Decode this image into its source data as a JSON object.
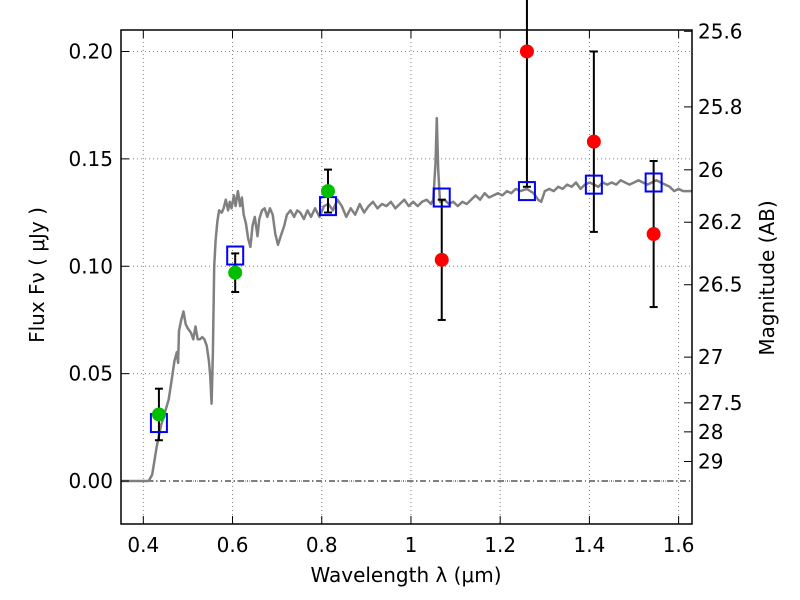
{
  "chart_data": {
    "type": "scatter",
    "xlabel": "Wavelength  λ (μm)",
    "ylabel": "Flux  Fν ( μJy )",
    "y2label": "Magnitude (AB)",
    "xlim": [
      0.35,
      1.63
    ],
    "ylim": [
      -0.02,
      0.21
    ],
    "grid": true,
    "x_ticks": [
      0.4,
      0.6,
      0.8,
      1.0,
      1.2,
      1.4,
      1.6
    ],
    "x_tick_labels": [
      "0.4",
      "0.6",
      "0.8",
      "1",
      "1.2",
      "1.4",
      "1.6"
    ],
    "y_ticks": [
      0.0,
      0.05,
      0.1,
      0.15,
      0.2
    ],
    "y_tick_labels": [
      "0.00",
      "0.05",
      "0.10",
      "0.15",
      "0.20"
    ],
    "mag_ticks": [
      {
        "label": "25.6",
        "flux": 0.2094
      },
      {
        "label": "25.8",
        "flux": 0.1742
      },
      {
        "label": "26",
        "flux": 0.1449
      },
      {
        "label": "26.2",
        "flux": 0.1205
      },
      {
        "label": "26.5",
        "flux": 0.0914
      },
      {
        "label": "27",
        "flux": 0.0577
      },
      {
        "label": "27.5",
        "flux": 0.0364
      },
      {
        "label": "28",
        "flux": 0.0229
      },
      {
        "label": "29",
        "flux": 0.0091
      }
    ],
    "colors": {
      "model": "#808080",
      "green": "#00bf00",
      "red": "#ff0000",
      "model_points": "#0000ff",
      "errorbar": "#000000",
      "grid": "#7f7f7f"
    },
    "series": [
      {
        "marker": "circle",
        "color": "#00bf00",
        "points": [
          {
            "x": 0.435,
            "y": 0.031,
            "yerr": 0.012
          },
          {
            "x": 0.606,
            "y": 0.097,
            "yerr": 0.009
          },
          {
            "x": 0.814,
            "y": 0.135,
            "yerr": 0.01
          }
        ]
      },
      {
        "marker": "circle",
        "color": "#ff0000",
        "points": [
          {
            "x": 1.069,
            "y": 0.103,
            "yerr": 0.028
          },
          {
            "x": 1.26,
            "y": 0.2,
            "yerr": 0.063
          },
          {
            "x": 1.41,
            "y": 0.158,
            "yerr": 0.042
          },
          {
            "x": 1.544,
            "y": 0.115,
            "yerr": 0.034
          }
        ]
      },
      {
        "marker": "open-square",
        "color": "#0000ff",
        "points": [
          {
            "x": 0.435,
            "y": 0.027
          },
          {
            "x": 0.606,
            "y": 0.105
          },
          {
            "x": 0.814,
            "y": 0.128
          },
          {
            "x": 1.069,
            "y": 0.132
          },
          {
            "x": 1.26,
            "y": 0.135
          },
          {
            "x": 1.41,
            "y": 0.138
          },
          {
            "x": 1.544,
            "y": 0.139
          }
        ]
      },
      {
        "marker": "line",
        "color": "#808080",
        "points": [
          [
            0.35,
            0.0
          ],
          [
            0.412,
            0.0
          ],
          [
            0.42,
            0.003
          ],
          [
            0.43,
            0.016
          ],
          [
            0.44,
            0.026
          ],
          [
            0.45,
            0.033
          ],
          [
            0.457,
            0.038
          ],
          [
            0.462,
            0.045
          ],
          [
            0.467,
            0.052
          ],
          [
            0.47,
            0.056
          ],
          [
            0.475,
            0.06
          ],
          [
            0.478,
            0.055
          ],
          [
            0.48,
            0.07
          ],
          [
            0.485,
            0.075
          ],
          [
            0.49,
            0.079
          ],
          [
            0.495,
            0.073
          ],
          [
            0.5,
            0.071
          ],
          [
            0.507,
            0.069
          ],
          [
            0.512,
            0.066
          ],
          [
            0.517,
            0.072
          ],
          [
            0.522,
            0.066
          ],
          [
            0.527,
            0.066
          ],
          [
            0.532,
            0.067
          ],
          [
            0.537,
            0.066
          ],
          [
            0.542,
            0.063
          ],
          [
            0.547,
            0.056
          ],
          [
            0.55,
            0.049
          ],
          [
            0.553,
            0.036
          ],
          [
            0.556,
            0.06
          ],
          [
            0.559,
            0.1
          ],
          [
            0.562,
            0.112
          ],
          [
            0.566,
            0.121
          ],
          [
            0.57,
            0.126
          ],
          [
            0.576,
            0.125
          ],
          [
            0.58,
            0.127
          ],
          [
            0.585,
            0.131
          ],
          [
            0.59,
            0.126
          ],
          [
            0.594,
            0.13
          ],
          [
            0.598,
            0.127
          ],
          [
            0.603,
            0.133
          ],
          [
            0.607,
            0.128
          ],
          [
            0.612,
            0.135
          ],
          [
            0.617,
            0.128
          ],
          [
            0.621,
            0.132
          ],
          [
            0.625,
            0.124
          ],
          [
            0.63,
            0.12
          ],
          [
            0.635,
            0.113
          ],
          [
            0.64,
            0.109
          ],
          [
            0.645,
            0.119
          ],
          [
            0.65,
            0.123
          ],
          [
            0.656,
            0.114
          ],
          [
            0.66,
            0.122
          ],
          [
            0.666,
            0.126
          ],
          [
            0.672,
            0.127
          ],
          [
            0.678,
            0.123
          ],
          [
            0.684,
            0.127
          ],
          [
            0.69,
            0.124
          ],
          [
            0.696,
            0.115
          ],
          [
            0.702,
            0.11
          ],
          [
            0.708,
            0.114
          ],
          [
            0.716,
            0.119
          ],
          [
            0.722,
            0.124
          ],
          [
            0.73,
            0.126
          ],
          [
            0.738,
            0.123
          ],
          [
            0.745,
            0.126
          ],
          [
            0.752,
            0.125
          ],
          [
            0.76,
            0.122
          ],
          [
            0.768,
            0.126
          ],
          [
            0.776,
            0.123
          ],
          [
            0.785,
            0.127
          ],
          [
            0.795,
            0.123
          ],
          [
            0.805,
            0.128
          ],
          [
            0.815,
            0.129
          ],
          [
            0.825,
            0.126
          ],
          [
            0.835,
            0.131
          ],
          [
            0.845,
            0.128
          ],
          [
            0.855,
            0.123
          ],
          [
            0.865,
            0.127
          ],
          [
            0.875,
            0.124
          ],
          [
            0.885,
            0.129
          ],
          [
            0.895,
            0.125
          ],
          [
            0.905,
            0.128
          ],
          [
            0.915,
            0.13
          ],
          [
            0.925,
            0.127
          ],
          [
            0.935,
            0.129
          ],
          [
            0.945,
            0.128
          ],
          [
            0.955,
            0.13
          ],
          [
            0.965,
            0.127
          ],
          [
            0.975,
            0.129
          ],
          [
            0.985,
            0.131
          ],
          [
            0.995,
            0.128
          ],
          [
            1.005,
            0.13
          ],
          [
            1.015,
            0.128
          ],
          [
            1.025,
            0.13
          ],
          [
            1.035,
            0.131
          ],
          [
            1.045,
            0.129
          ],
          [
            1.05,
            0.131
          ],
          [
            1.055,
            0.148
          ],
          [
            1.058,
            0.169
          ],
          [
            1.061,
            0.145
          ],
          [
            1.065,
            0.13
          ],
          [
            1.075,
            0.131
          ],
          [
            1.085,
            0.129
          ],
          [
            1.095,
            0.13
          ],
          [
            1.105,
            0.128
          ],
          [
            1.115,
            0.13
          ],
          [
            1.125,
            0.129
          ],
          [
            1.135,
            0.131
          ],
          [
            1.145,
            0.133
          ],
          [
            1.155,
            0.131
          ],
          [
            1.165,
            0.134
          ],
          [
            1.175,
            0.132
          ],
          [
            1.185,
            0.133
          ],
          [
            1.195,
            0.134
          ],
          [
            1.205,
            0.133
          ],
          [
            1.215,
            0.135
          ],
          [
            1.225,
            0.134
          ],
          [
            1.235,
            0.136
          ],
          [
            1.245,
            0.135
          ],
          [
            1.26,
            0.136
          ],
          [
            1.275,
            0.134
          ],
          [
            1.285,
            0.131
          ],
          [
            1.292,
            0.13
          ],
          [
            1.3,
            0.135
          ],
          [
            1.31,
            0.136
          ],
          [
            1.32,
            0.135
          ],
          [
            1.33,
            0.137
          ],
          [
            1.34,
            0.136
          ],
          [
            1.35,
            0.138
          ],
          [
            1.36,
            0.137
          ],
          [
            1.37,
            0.139
          ],
          [
            1.38,
            0.136
          ],
          [
            1.39,
            0.138
          ],
          [
            1.4,
            0.139
          ],
          [
            1.41,
            0.138
          ],
          [
            1.42,
            0.137
          ],
          [
            1.43,
            0.139
          ],
          [
            1.44,
            0.138
          ],
          [
            1.45,
            0.139
          ],
          [
            1.46,
            0.138
          ],
          [
            1.47,
            0.14
          ],
          [
            1.48,
            0.139
          ],
          [
            1.49,
            0.138
          ],
          [
            1.5,
            0.139
          ],
          [
            1.51,
            0.14
          ],
          [
            1.52,
            0.139
          ],
          [
            1.53,
            0.138
          ],
          [
            1.54,
            0.139
          ],
          [
            1.55,
            0.14
          ],
          [
            1.56,
            0.139
          ],
          [
            1.57,
            0.138
          ],
          [
            1.58,
            0.137
          ],
          [
            1.59,
            0.135
          ],
          [
            1.6,
            0.136
          ],
          [
            1.61,
            0.135
          ],
          [
            1.63,
            0.135
          ]
        ]
      }
    ]
  }
}
